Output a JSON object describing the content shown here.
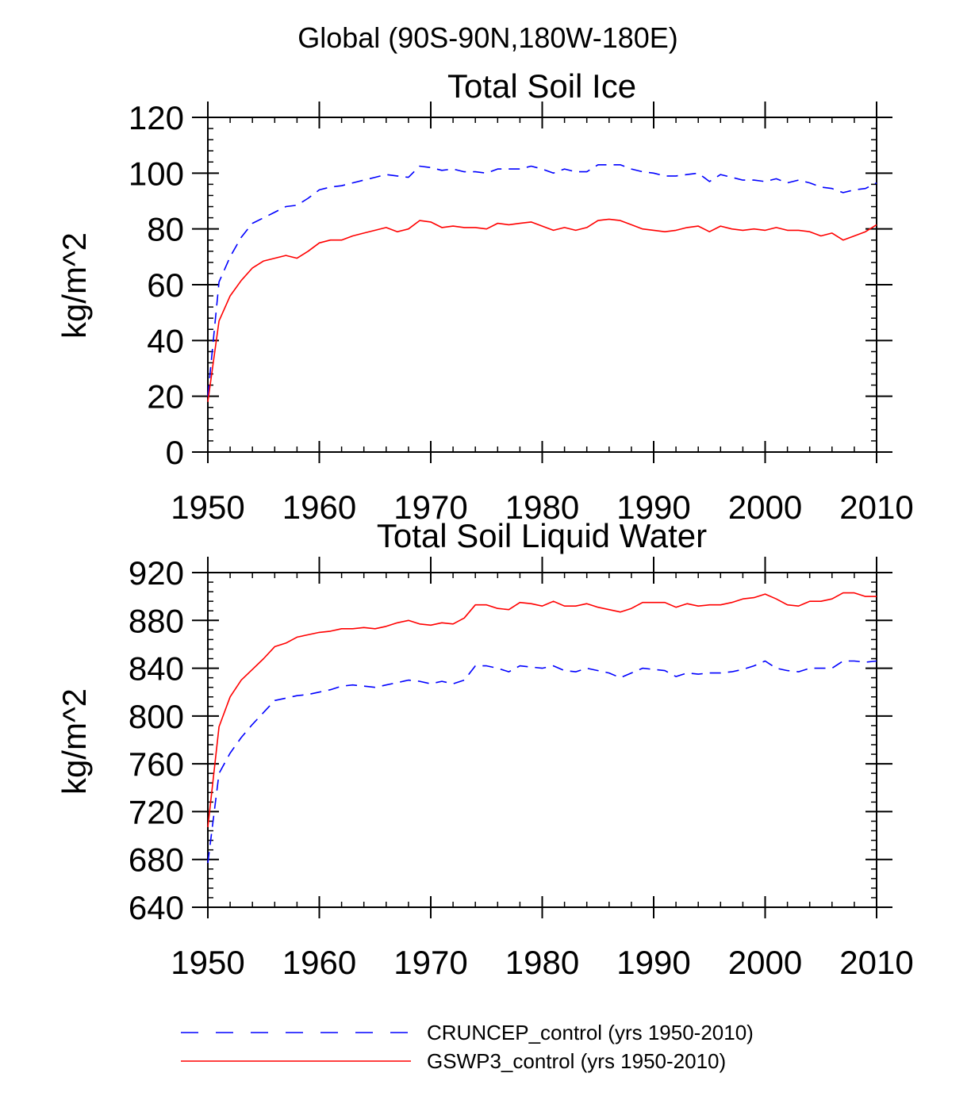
{
  "suptitle": "Global (90S-90N,180W-180E)",
  "legend": [
    {
      "label": "CRUNCEP_control (yrs 1950-2010)",
      "color": "#0000ff",
      "dash": "dashed"
    },
    {
      "label": "GSWP3_control (yrs 1950-2010)",
      "color": "#ff0000",
      "dash": "solid"
    }
  ],
  "chart_data": [
    {
      "type": "line",
      "title": "Total Soil Ice",
      "xlabel": "",
      "ylabel": "kg/m^2",
      "xlim": [
        1950,
        2010
      ],
      "ylim": [
        0,
        120
      ],
      "xticks": [
        1950,
        1960,
        1970,
        1980,
        1990,
        2000,
        2010
      ],
      "yticks": [
        0,
        20,
        40,
        60,
        80,
        100,
        120
      ],
      "x": [
        1950,
        1951,
        1952,
        1953,
        1954,
        1955,
        1956,
        1957,
        1958,
        1959,
        1960,
        1961,
        1962,
        1963,
        1964,
        1965,
        1966,
        1967,
        1968,
        1969,
        1970,
        1971,
        1972,
        1973,
        1974,
        1975,
        1976,
        1977,
        1978,
        1979,
        1980,
        1981,
        1982,
        1983,
        1984,
        1985,
        1986,
        1987,
        1988,
        1989,
        1990,
        1991,
        1992,
        1993,
        1994,
        1995,
        1996,
        1997,
        1998,
        1999,
        2000,
        2001,
        2002,
        2003,
        2004,
        2005,
        2006,
        2007,
        2008,
        2009,
        2010
      ],
      "series": [
        {
          "name": "CRUNCEP_control (yrs 1950-2010)",
          "color": "#0000ff",
          "dash": "dashed",
          "values": [
            20,
            61,
            70,
            77,
            82,
            84,
            86,
            88,
            88.5,
            91,
            94,
            95,
            95.5,
            96.5,
            97.5,
            98.5,
            99.5,
            99,
            98.5,
            102.5,
            102,
            101,
            101.5,
            100.5,
            100.5,
            100,
            101.5,
            101.5,
            101.5,
            102.5,
            101.5,
            100,
            101.5,
            100.5,
            100.5,
            103,
            103,
            103,
            101.5,
            100.5,
            100,
            99,
            99,
            99.5,
            100,
            97,
            99.5,
            98.5,
            97.5,
            97.5,
            97,
            98,
            96.5,
            97.5,
            96.5,
            95,
            94.5,
            93,
            94,
            94.5,
            96.5
          ]
        },
        {
          "name": "GSWP3_control (yrs 1950-2010)",
          "color": "#ff0000",
          "dash": "solid",
          "values": [
            18,
            47,
            56,
            61.5,
            66,
            68.5,
            69.5,
            70.5,
            69.5,
            72,
            75,
            76,
            76,
            77.5,
            78.5,
            79.5,
            80.5,
            79,
            80,
            83,
            82.5,
            80.5,
            81,
            80.5,
            80.5,
            80,
            82,
            81.5,
            82,
            82.5,
            81,
            79.5,
            80.5,
            79.5,
            80.5,
            83,
            83.5,
            83,
            81.5,
            80,
            79.5,
            79,
            79.5,
            80.5,
            81,
            79,
            81,
            80,
            79.5,
            80,
            79.5,
            80.5,
            79.5,
            79.5,
            79,
            77.5,
            78.5,
            76,
            77.5,
            79,
            81.5
          ]
        }
      ]
    },
    {
      "type": "line",
      "title": "Total Soil Liquid Water",
      "xlabel": "",
      "ylabel": "kg/m^2",
      "xlim": [
        1950,
        2010
      ],
      "ylim": [
        640,
        920
      ],
      "xticks": [
        1950,
        1960,
        1970,
        1980,
        1990,
        2000,
        2010
      ],
      "yticks": [
        640,
        680,
        720,
        760,
        800,
        840,
        880,
        920
      ],
      "x": [
        1950,
        1951,
        1952,
        1953,
        1954,
        1955,
        1956,
        1957,
        1958,
        1959,
        1960,
        1961,
        1962,
        1963,
        1964,
        1965,
        1966,
        1967,
        1968,
        1969,
        1970,
        1971,
        1972,
        1973,
        1974,
        1975,
        1976,
        1977,
        1978,
        1979,
        1980,
        1981,
        1982,
        1983,
        1984,
        1985,
        1986,
        1987,
        1988,
        1989,
        1990,
        1991,
        1992,
        1993,
        1994,
        1995,
        1996,
        1997,
        1998,
        1999,
        2000,
        2001,
        2002,
        2003,
        2004,
        2005,
        2006,
        2007,
        2008,
        2009,
        2010
      ],
      "series": [
        {
          "name": "CRUNCEP_control (yrs 1950-2010)",
          "color": "#0000ff",
          "dash": "dashed",
          "values": [
            677,
            752,
            769,
            782,
            793,
            803,
            813,
            815,
            817,
            818,
            820,
            822,
            825,
            826,
            825,
            824,
            826,
            828,
            830,
            829,
            827,
            829,
            827,
            830,
            842,
            842,
            840,
            837,
            842,
            841,
            840,
            842,
            838,
            837,
            840,
            838,
            836,
            832,
            836,
            840,
            839,
            838,
            833,
            836,
            835,
            836,
            836,
            837,
            839,
            842,
            846,
            840,
            838,
            837,
            840,
            840,
            840,
            846,
            846,
            845,
            846
          ]
        },
        {
          "name": "GSWP3_control (yrs 1950-2010)",
          "color": "#ff0000",
          "dash": "solid",
          "values": [
            707,
            791,
            816,
            830,
            839,
            848,
            858,
            861,
            866,
            868,
            870,
            871,
            873,
            873,
            874,
            873,
            875,
            878,
            880,
            877,
            876,
            878,
            877,
            882,
            893,
            893,
            890,
            889,
            895,
            894,
            892,
            896,
            892,
            892,
            894,
            891,
            889,
            887,
            890,
            895,
            895,
            895,
            891,
            894,
            892,
            893,
            893,
            895,
            898,
            899,
            902,
            898,
            893,
            892,
            896,
            896,
            898,
            903,
            903,
            900,
            900
          ]
        }
      ]
    }
  ]
}
